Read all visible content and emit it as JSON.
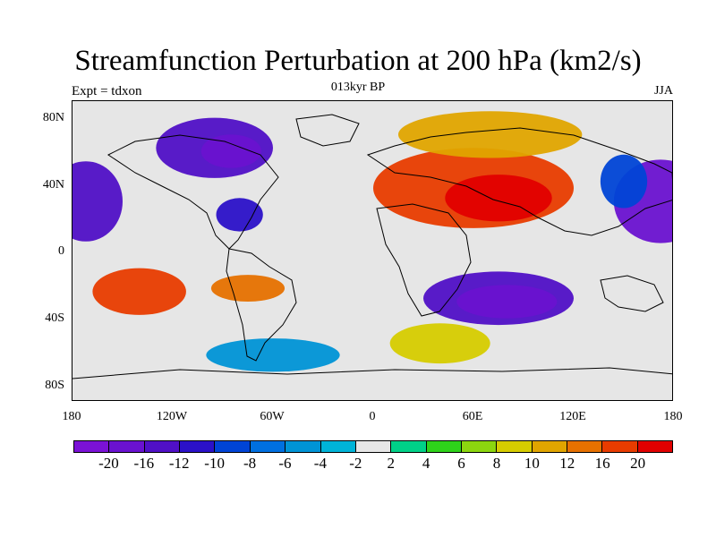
{
  "title": "Streamfunction Perturbation at 200 hPa (km2/s)",
  "subtitle": "013kyr BP",
  "left_label": "Expt = tdxon",
  "right_label": "JJA",
  "lat_labels": [
    "80N",
    "40N",
    "0",
    "40S",
    "80S"
  ],
  "lon_labels": [
    "180",
    "120W",
    "60W",
    "0",
    "60E",
    "120E",
    "180"
  ],
  "colorbar": {
    "colors": [
      "#7b12d6",
      "#6a12d0",
      "#5010c6",
      "#2b11c8",
      "#0044d6",
      "#0070e0",
      "#0094d6",
      "#00b4d8",
      "#e6e6e6",
      "#00d188",
      "#2ed21a",
      "#8cd60f",
      "#d6cc00",
      "#e0a500",
      "#e67100",
      "#e83c00",
      "#e10000"
    ],
    "labels": [
      "-20",
      "-16",
      "-12",
      "-10",
      "-8",
      "-6",
      "-4",
      "-2",
      "2",
      "4",
      "6",
      "8",
      "10",
      "12",
      "16",
      "20"
    ]
  },
  "map": {
    "land_color": "#e6e6e6",
    "features": [
      {
        "name": "north-america-low",
        "value": -16,
        "lon": -95,
        "lat": 62,
        "rx": 35,
        "ry": 18
      },
      {
        "name": "north-america-low-core",
        "value": -20,
        "lon": -85,
        "lat": 60,
        "rx": 18,
        "ry": 10
      },
      {
        "name": "gulf-low",
        "value": -12,
        "lon": -80,
        "lat": 22,
        "rx": 14,
        "ry": 10
      },
      {
        "name": "pacific-east-low",
        "value": -20,
        "lon": 172,
        "lat": 30,
        "rx": 28,
        "ry": 25
      },
      {
        "name": "pacific-west-low",
        "value": -16,
        "lon": -172,
        "lat": 30,
        "rx": 22,
        "ry": 24
      },
      {
        "name": "asia-high",
        "value": 16,
        "lon": 60,
        "lat": 38,
        "rx": 60,
        "ry": 24
      },
      {
        "name": "asia-high-core",
        "value": 20,
        "lon": 75,
        "lat": 32,
        "rx": 32,
        "ry": 14
      },
      {
        "name": "arctic-high",
        "value": 10,
        "lon": 70,
        "lat": 70,
        "rx": 55,
        "ry": 14
      },
      {
        "name": "south-pacific-high",
        "value": 16,
        "lon": -140,
        "lat": -24,
        "rx": 28,
        "ry": 14
      },
      {
        "name": "south-america-high",
        "value": 12,
        "lon": -75,
        "lat": -22,
        "rx": 22,
        "ry": 8
      },
      {
        "name": "south-indian-low",
        "value": -16,
        "lon": 75,
        "lat": -28,
        "rx": 45,
        "ry": 16
      },
      {
        "name": "south-indian-low-core",
        "value": -20,
        "lon": 80,
        "lat": -30,
        "rx": 30,
        "ry": 10
      },
      {
        "name": "south-atlantic-band",
        "value": 8,
        "lon": 40,
        "lat": -55,
        "rx": 30,
        "ry": 12
      },
      {
        "name": "antarctic-low",
        "value": -6,
        "lon": -60,
        "lat": -62,
        "rx": 40,
        "ry": 10
      },
      {
        "name": "west-pacific-low",
        "value": -10,
        "lon": 150,
        "lat": 42,
        "rx": 14,
        "ry": 16
      }
    ]
  }
}
